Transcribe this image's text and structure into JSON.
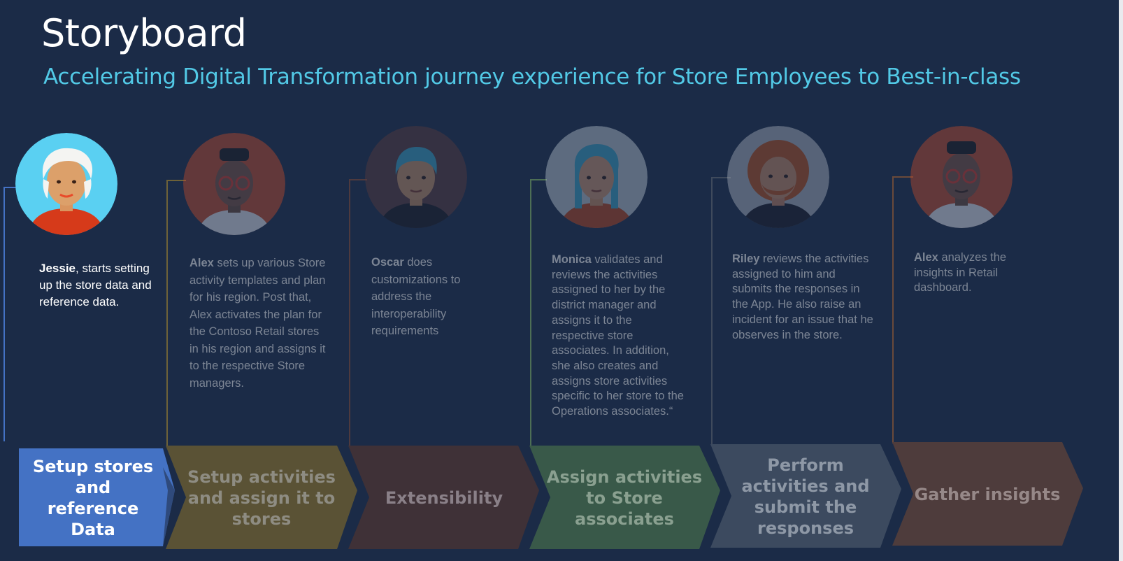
{
  "header": {
    "title": "Storyboard",
    "subtitle": "Accelerating Digital Transformation journey experience for Store Employees to Best-in-class"
  },
  "steps": [
    {
      "name": "Jessie",
      "text": ", starts setting up the store data and reference data.",
      "stage": "Setup stores and reference Data",
      "color": "#4472c4",
      "lineColor": "#4472c4",
      "avatarBg": "#5ad0f2"
    },
    {
      "name": "Alex",
      "text": " sets up various Store activity templates and plan for his region. Post that, Alex activates the plan for the Contoso Retail stores in his region and assigns it to the respective Store managers.",
      "stage": "Setup activities and assign it to stores",
      "color": "#5a5235",
      "lineColor": "#6e6238",
      "avatarBg": "#c44a2a"
    },
    {
      "name": "Oscar",
      "text": " does customizations to address the interoperability requirements",
      "stage": "Extensibility",
      "color": "#3f3137",
      "lineColor": "#4e3a3e",
      "avatarBg": "#5a3a3c"
    },
    {
      "name": "Monica",
      "text": " validates and reviews the activities assigned to her by the district manager and assigns it to the respective store associates. In addition, she also creates and assigns store activities specific to her store to the Operations associates.“",
      "stage": "Assign activities to Store associates",
      "color": "#395949",
      "lineColor": "#4d6e55",
      "avatarBg": "#b9c4cc"
    },
    {
      "name": "Riley",
      "text": " reviews the activities assigned to him and submits the responses in the App. He also raise an incident for an issue that he observes in the store.",
      "stage": "Perform activities and submit the responses",
      "color": "#3c4a5f",
      "lineColor": "#3f4a5c",
      "avatarBg": "#aab2bc"
    },
    {
      "name": "Alex",
      "text": " analyzes the insights in Retail dashboard.",
      "stage": "Gather insights",
      "color": "#4e3c3c",
      "lineColor": "#6b4a3a",
      "avatarBg": "#c44a2a"
    }
  ]
}
